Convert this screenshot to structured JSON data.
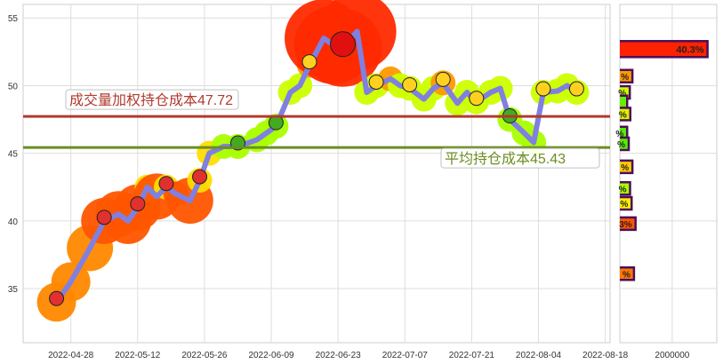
{
  "chart_data": [
    {
      "type": "line",
      "xlim": [
        "2022-04-18",
        "2022-08-19"
      ],
      "ylim": [
        31,
        56
      ],
      "grid": true,
      "x_ticks": [
        "2022-04-28",
        "2022-05-12",
        "2022-05-26",
        "2022-06-09",
        "2022-06-23",
        "2022-07-07",
        "2022-07-21",
        "2022-08-04",
        "2022-08-18"
      ],
      "y_ticks": [
        35,
        40,
        45,
        50,
        55
      ],
      "line_color": "#8080e0",
      "series": [
        {
          "x": [
            "2022-04-25",
            "2022-04-28",
            "2022-05-02",
            "2022-05-05",
            "2022-05-08",
            "2022-05-10",
            "2022-05-12",
            "2022-05-14",
            "2022-05-16",
            "2022-05-18",
            "2022-05-20",
            "2022-05-23",
            "2022-05-25",
            "2022-05-27",
            "2022-05-30",
            "2022-06-02",
            "2022-06-06",
            "2022-06-08",
            "2022-06-10",
            "2022-06-13",
            "2022-06-15",
            "2022-06-17",
            "2022-06-20",
            "2022-06-22",
            "2022-06-24",
            "2022-06-27",
            "2022-06-29",
            "2022-07-01",
            "2022-07-04",
            "2022-07-06",
            "2022-07-08",
            "2022-07-11",
            "2022-07-13",
            "2022-07-15",
            "2022-07-18",
            "2022-07-20",
            "2022-07-22",
            "2022-07-25",
            "2022-07-27",
            "2022-07-29",
            "2022-08-01",
            "2022-08-03",
            "2022-08-05",
            "2022-08-08",
            "2022-08-10",
            "2022-08-12"
          ],
          "y": [
            34.0,
            35.5,
            38.0,
            40.0,
            40.5,
            40.0,
            41.0,
            42.5,
            41.8,
            42.5,
            42.0,
            41.5,
            43.0,
            45.0,
            45.5,
            45.5,
            46.0,
            46.5,
            47.0,
            49.5,
            50.0,
            51.5,
            53.5,
            53.0,
            52.8,
            54.0,
            49.5,
            50.0,
            50.5,
            50.0,
            49.8,
            49.0,
            49.8,
            50.2,
            48.7,
            49.5,
            48.8,
            49.5,
            49.8,
            47.5,
            46.5,
            45.8,
            49.5,
            49.6,
            50.0,
            49.5
          ]
        }
      ],
      "hlines": [
        {
          "label": "成交量加权持仓成本47.72",
          "value": 47.72,
          "color": "#b03a2e"
        },
        {
          "label": "平均持仓成本45.43",
          "value": 45.43,
          "color": "#6b8e23"
        }
      ]
    },
    {
      "type": "bar",
      "orientation": "horizontal",
      "xlim": [
        0,
        3500000
      ],
      "x_ticks": [
        {
          "value": 2000000,
          "label": "2000000"
        }
      ],
      "bars": [
        {
          "price": 52.7,
          "volume": 3350000,
          "label": "40.3%",
          "color": "#ff2200"
        },
        {
          "price": 50.7,
          "volume": 480000,
          "label": "%",
          "color": "#ff9900"
        },
        {
          "price": 49.5,
          "volume": 380000,
          "label": "%",
          "color": "#ccff00"
        },
        {
          "price": 48.8,
          "volume": 280000,
          "label": "",
          "color": "#66ee00"
        },
        {
          "price": 47.9,
          "volume": 400000,
          "label": "%",
          "color": "#ddee00"
        },
        {
          "price": 46.5,
          "volume": 280000,
          "label": "%",
          "color": "#55ee00"
        },
        {
          "price": 45.7,
          "volume": 340000,
          "label": "%",
          "color": "#55ee00"
        },
        {
          "price": 44.0,
          "volume": 480000,
          "label": "%",
          "color": "#ffcc00"
        },
        {
          "price": 42.4,
          "volume": 390000,
          "label": "%",
          "color": "#aaff00"
        },
        {
          "price": 41.3,
          "volume": 450000,
          "label": "%",
          "color": "#ffee00"
        },
        {
          "price": 39.8,
          "volume": 600000,
          "label": "3%",
          "color": "#ff5500"
        },
        {
          "price": 36.1,
          "volume": 540000,
          "label": "%",
          "color": "#ff7700"
        }
      ]
    }
  ]
}
